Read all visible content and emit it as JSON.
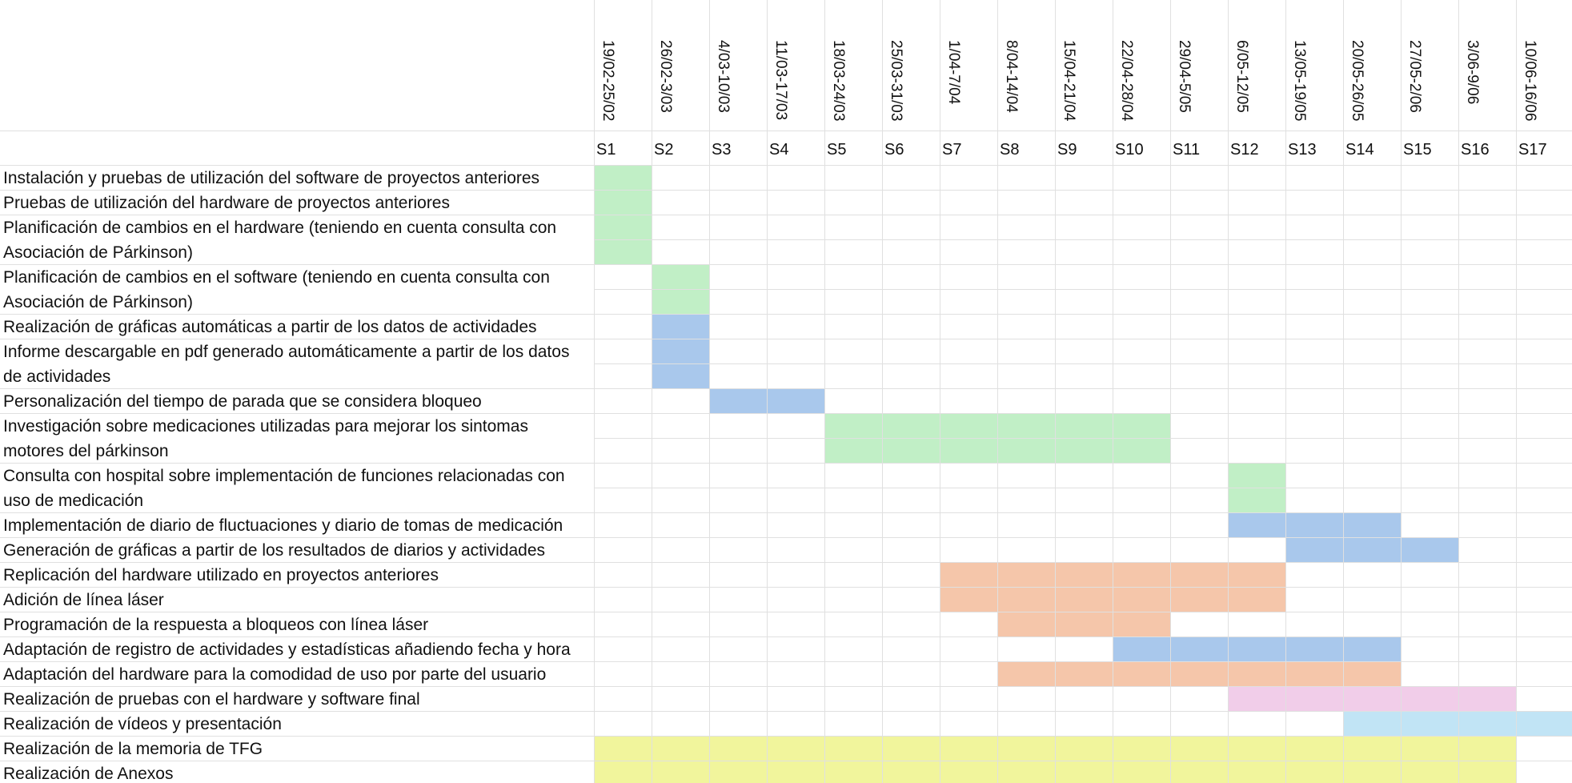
{
  "chart_data": {
    "type": "gantt",
    "weeks": [
      "S1",
      "S2",
      "S3",
      "S4",
      "S5",
      "S6",
      "S7",
      "S8",
      "S9",
      "S10",
      "S11",
      "S12",
      "S13",
      "S14",
      "S15",
      "S16",
      "S17"
    ],
    "date_ranges": [
      "19/02-25/02",
      "26/02-3/03",
      "4/03-10/03",
      "11/03-17/03",
      "18/03-24/03",
      "25/03-31/03",
      "1/04-7/04",
      "8/04-14/04",
      "15/04-21/04",
      "22/04-28/04",
      "29/04-5/05",
      "6/05-12/05",
      "13/05-19/05",
      "20/05-26/05",
      "27/05-2/06",
      "3/06-9/06",
      "10/06-16/06"
    ],
    "colors": {
      "green": "#c1efc6",
      "blue": "#a9c8ec",
      "orange": "#f5c6aa",
      "pink": "#f1cde9",
      "lightblue": "#c1e4f5",
      "yellow": "#f1f59c"
    },
    "tasks": [
      {
        "label": [
          "Instalación y pruebas de utilización del software de proyectos anteriores"
        ],
        "start": 1,
        "end": 1,
        "color": "green"
      },
      {
        "label": [
          "Pruebas de utilización del hardware de proyectos anteriores"
        ],
        "start": 1,
        "end": 1,
        "color": "green"
      },
      {
        "label": [
          "Planificación de cambios en el hardware (teniendo en cuenta consulta con",
          "Asociación de Párkinson)"
        ],
        "start": 1,
        "end": 1,
        "color": "green"
      },
      {
        "label": [
          "Planificación de cambios en el software (teniendo en cuenta consulta con",
          "Asociación de Párkinson)"
        ],
        "start": 2,
        "end": 2,
        "color": "green"
      },
      {
        "label": [
          "Realización de gráficas automáticas a partir de los datos de actividades"
        ],
        "start": 2,
        "end": 2,
        "color": "blue"
      },
      {
        "label": [
          "Informe descargable en pdf generado automáticamente a partir de los datos",
          "de actividades"
        ],
        "start": 2,
        "end": 2,
        "color": "blue"
      },
      {
        "label": [
          "Personalización del tiempo de parada que se considera bloqueo"
        ],
        "start": 3,
        "end": 4,
        "color": "blue"
      },
      {
        "label": [
          "Investigación sobre medicaciones utilizadas para mejorar los sintomas",
          "motores del párkinson"
        ],
        "start": 5,
        "end": 10,
        "color": "green"
      },
      {
        "label": [
          "Consulta con hospital sobre implementación de funciones relacionadas con",
          "uso de medicación"
        ],
        "start": 12,
        "end": 12,
        "color": "green"
      },
      {
        "label": [
          "Implementación de diario de fluctuaciones y diario de tomas de medicación"
        ],
        "start": 12,
        "end": 14,
        "color": "blue"
      },
      {
        "label": [
          "Generación de gráficas a partir de los resultados de diarios y actividades"
        ],
        "start": 13,
        "end": 15,
        "color": "blue"
      },
      {
        "label": [
          "Replicación del hardware utilizado en proyectos anteriores"
        ],
        "start": 7,
        "end": 12,
        "color": "orange"
      },
      {
        "label": [
          "Adición de línea láser"
        ],
        "start": 7,
        "end": 12,
        "color": "orange"
      },
      {
        "label": [
          "Programación de la respuesta a bloqueos con línea láser"
        ],
        "start": 8,
        "end": 10,
        "color": "orange"
      },
      {
        "label": [
          "Adaptación de registro de actividades y estadísticas añadiendo fecha y hora"
        ],
        "start": 10,
        "end": 14,
        "color": "blue"
      },
      {
        "label": [
          "Adaptación del hardware para la comodidad de uso por parte del usuario"
        ],
        "start": 8,
        "end": 14,
        "color": "orange"
      },
      {
        "label": [
          "Realización de pruebas con el hardware y software final"
        ],
        "start": 12,
        "end": 16,
        "color": "pink"
      },
      {
        "label": [
          "Realización de vídeos y presentación"
        ],
        "start": 14,
        "end": 17,
        "color": "lightblue"
      },
      {
        "label": [
          "Realización de la memoria de TFG"
        ],
        "start": 1,
        "end": 16,
        "color": "yellow"
      },
      {
        "label": [
          "Realización de Anexos"
        ],
        "start": 1,
        "end": 16,
        "color": "yellow"
      }
    ]
  }
}
